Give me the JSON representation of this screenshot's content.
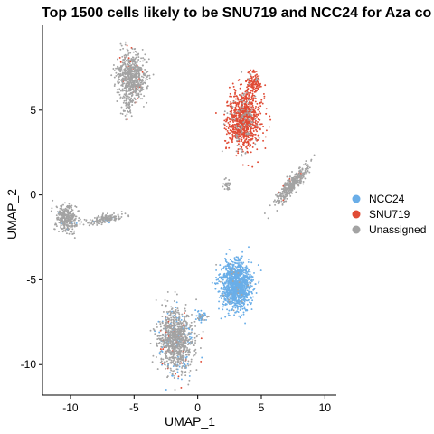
{
  "chart_data": {
    "type": "scatter",
    "title": "Top 1500 cells likely to be SNU719 and NCC24 for Aza co",
    "xlabel": "UMAP_1",
    "ylabel": "UMAP_2",
    "xlim": [
      -12.2,
      10.9
    ],
    "ylim": [
      -11.8,
      10.0
    ],
    "xticks": [
      -10,
      -5,
      0,
      5,
      10
    ],
    "yticks": [
      -10,
      -5,
      0,
      5
    ],
    "xtick_labels": [
      "-10",
      "-5",
      "0",
      "5",
      "10"
    ],
    "ytick_labels": [
      "-10",
      "-5",
      "0",
      "5"
    ],
    "legend_position": "right",
    "series": [
      {
        "name": "NCC24",
        "color": "#6aaee8"
      },
      {
        "name": "SNU719",
        "color": "#e04b35"
      },
      {
        "name": "Unassigned",
        "color": "#a3a3a3"
      }
    ],
    "clusters": [
      {
        "series": "Unassigned",
        "center": [
          -5.2,
          7.0
        ],
        "spread": [
          1.0,
          1.25
        ],
        "count": 650,
        "mix": {
          "SNU719": 0.05
        }
      },
      {
        "series": "Unassigned",
        "center": [
          -5.5,
          5.2
        ],
        "spread": [
          0.4,
          0.6
        ],
        "count": 60,
        "mix": {
          "SNU719": 0.03
        }
      },
      {
        "series": "SNU719",
        "center": [
          3.6,
          4.5
        ],
        "spread": [
          1.2,
          1.6
        ],
        "count": 950,
        "mix": {
          "Unassigned": 0.1
        }
      },
      {
        "series": "SNU719",
        "center": [
          4.4,
          6.6
        ],
        "spread": [
          0.5,
          0.55
        ],
        "count": 110,
        "mix": {
          "Unassigned": 0.05
        }
      },
      {
        "series": "Unassigned",
        "center": [
          2.3,
          0.6
        ],
        "spread": [
          0.3,
          0.3
        ],
        "count": 30,
        "mix": {}
      },
      {
        "series": "Unassigned",
        "center": [
          7.4,
          0.6
        ],
        "spread": [
          1.6,
          0.35
        ],
        "count": 380,
        "mix": {
          "SNU719": 0.05
        },
        "angle": 40
      },
      {
        "series": "Unassigned",
        "center": [
          -10.3,
          -1.4
        ],
        "spread": [
          0.75,
          0.75
        ],
        "count": 290,
        "mix": {
          "NCC24": 0.02
        }
      },
      {
        "series": "Unassigned",
        "center": [
          -7.2,
          -1.4
        ],
        "spread": [
          1.3,
          0.25
        ],
        "count": 150,
        "mix": {
          "NCC24": 0.04
        },
        "angle": 8
      },
      {
        "series": "NCC24",
        "center": [
          3.0,
          -5.3
        ],
        "spread": [
          1.1,
          1.3
        ],
        "count": 1150,
        "mix": {
          "Unassigned": 0.02
        }
      },
      {
        "series": "Unassigned",
        "center": [
          -1.7,
          -8.6
        ],
        "spread": [
          1.25,
          1.6
        ],
        "count": 1000,
        "mix": {
          "NCC24": 0.15,
          "SNU719": 0.05
        }
      },
      {
        "series": "NCC24",
        "center": [
          0.3,
          -7.2
        ],
        "spread": [
          0.4,
          0.3
        ],
        "count": 50,
        "mix": {
          "Unassigned": 0.2
        }
      }
    ]
  }
}
